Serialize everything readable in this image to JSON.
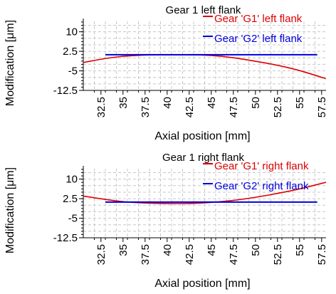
{
  "chart_data": [
    {
      "type": "line",
      "title": "Gear 1 left flank",
      "xlabel": "Axial position [mm]",
      "ylabel": "Modification [μm]",
      "xlim": [
        30.5,
        58
      ],
      "ylim": [
        -12.5,
        14
      ],
      "xticks": [
        "32.5",
        "35",
        "37.5",
        "40",
        "42.5",
        "45",
        "47.5",
        "50",
        "52.5",
        "55",
        "57.5"
      ],
      "yticks": [
        "10",
        "2.5",
        "-5",
        "-12.5"
      ],
      "grid": true,
      "legend_position": "top-right",
      "series": [
        {
          "name": "Gear 'G1' left flank",
          "color": "#dd0000",
          "x": [
            30.5,
            33,
            35,
            37.5,
            40,
            42.5,
            45,
            47.5,
            50,
            52.5,
            55,
            58
          ],
          "y": [
            -1.8,
            -0.2,
            0.6,
            1.1,
            1.2,
            1.2,
            1.0,
            0.1,
            -1.3,
            -2.8,
            -4.8,
            -8.0
          ]
        },
        {
          "name": "Gear 'G2' left flank",
          "color": "#0000dd",
          "x": [
            33,
            57
          ],
          "y": [
            1.2,
            1.2
          ]
        }
      ]
    },
    {
      "type": "line",
      "title": "Gear 1 right flank",
      "xlabel": "Axial position [mm]",
      "ylabel": "Modification [μm]",
      "xlim": [
        30.5,
        58
      ],
      "ylim": [
        -12.5,
        14
      ],
      "xticks": [
        "32.5",
        "35",
        "37.5",
        "40",
        "42.5",
        "45",
        "47.5",
        "50",
        "52.5",
        "55",
        "57.5"
      ],
      "yticks": [
        "10",
        "2.5",
        "-5",
        "-12.5"
      ],
      "grid": true,
      "legend_position": "top-right",
      "series": [
        {
          "name": "Gear 'G1' right flank",
          "color": "#dd0000",
          "x": [
            30.5,
            33,
            35,
            37.5,
            40,
            42.5,
            45,
            47.5,
            50,
            52.5,
            55,
            58
          ],
          "y": [
            3.5,
            2.2,
            1.3,
            0.8,
            0.6,
            0.6,
            1.0,
            1.8,
            3.0,
            4.5,
            6.2,
            8.8
          ]
        },
        {
          "name": "Gear 'G2' right flank",
          "color": "#0000dd",
          "x": [
            33,
            57
          ],
          "y": [
            1.2,
            1.2
          ]
        }
      ]
    }
  ]
}
